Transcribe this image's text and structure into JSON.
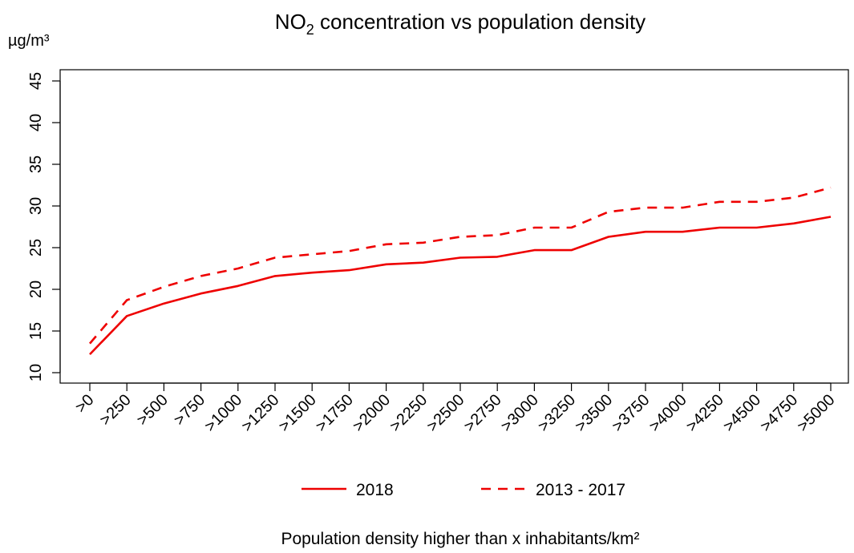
{
  "chart_data": {
    "type": "line",
    "title": {
      "prefix": "NO",
      "subscript": "2",
      "suffix": " concentration vs population density"
    },
    "ylabel": "µg/m³",
    "xlabel": "Population density higher than x inhabitants/km²",
    "categories": [
      ">0",
      ">250",
      ">500",
      ">750",
      ">1000",
      ">1250",
      ">1500",
      ">1750",
      ">2000",
      ">2250",
      ">2500",
      ">2750",
      ">3000",
      ">3250",
      ">3500",
      ">3750",
      ">4000",
      ">4250",
      ">4500",
      ">4750",
      ">5000"
    ],
    "ylim": [
      10,
      45
    ],
    "yticks": [
      10,
      15,
      20,
      25,
      30,
      35,
      40,
      45
    ],
    "grid": false,
    "legend_position": "bottom",
    "series": [
      {
        "name": "2018",
        "style": "solid",
        "color": "#ee0000",
        "values": [
          12.2,
          16.8,
          18.3,
          19.5,
          20.4,
          21.6,
          22.0,
          22.3,
          23.0,
          23.2,
          23.8,
          23.9,
          24.7,
          24.7,
          26.3,
          26.9,
          26.9,
          27.4,
          27.4,
          27.9,
          28.7
        ]
      },
      {
        "name": "2013 - 2017",
        "style": "dashed",
        "color": "#ee0000",
        "values": [
          13.5,
          18.7,
          20.3,
          21.6,
          22.5,
          23.8,
          24.2,
          24.6,
          25.4,
          25.6,
          26.3,
          26.5,
          27.4,
          27.4,
          29.3,
          29.8,
          29.8,
          30.5,
          30.5,
          31.0,
          32.2
        ]
      }
    ]
  }
}
